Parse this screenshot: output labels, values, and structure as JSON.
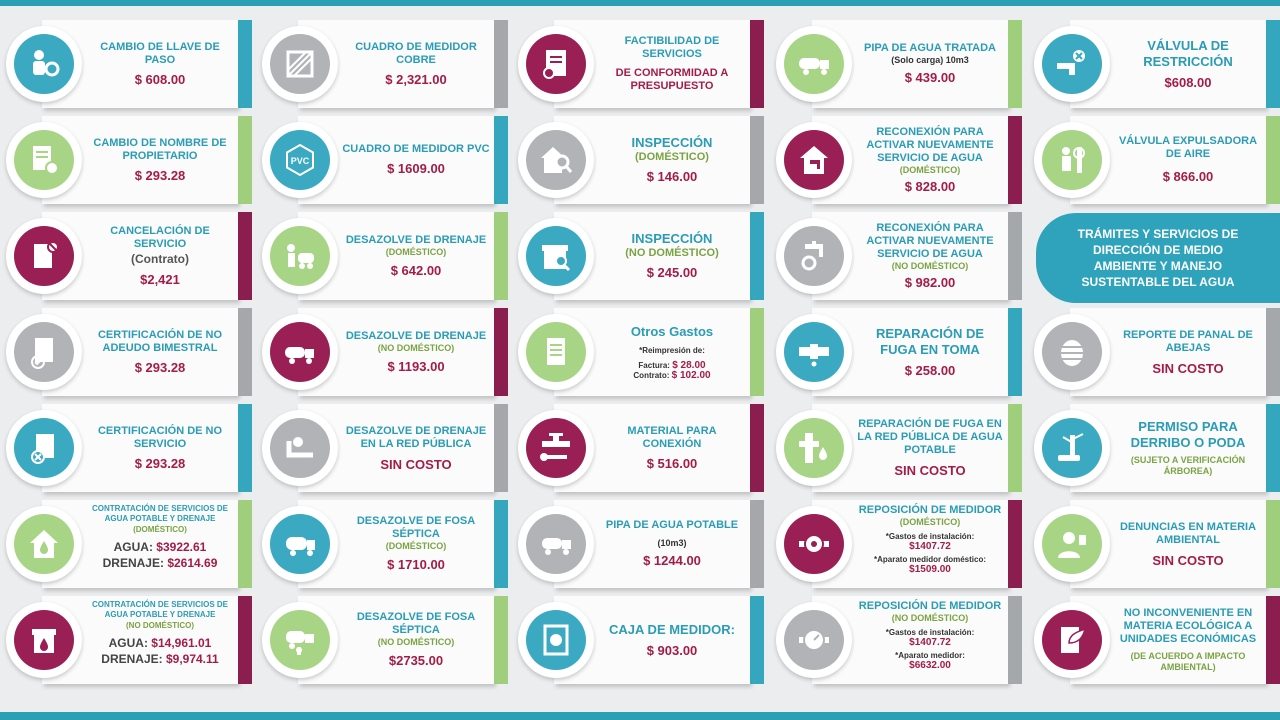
{
  "ribbon": "TRÁMITES Y SERVICIOS DE DIRECCIÓN DE MEDIO AMBIENTE Y MANEJO SUSTENTABLE DEL AGUA",
  "col1": [
    {
      "title": "CAMBIO DE LLAVE DE PASO",
      "price": "$ 608.00"
    },
    {
      "title": "CAMBIO DE NOMBRE DE PROPIETARIO",
      "price": "$ 293.28"
    },
    {
      "title": "CANCELACIÓN DE SERVICIO",
      "note": "(Contrato)",
      "price": "$2,421"
    },
    {
      "title": "CERTIFICACIÓN DE NO ADEUDO BIMESTRAL",
      "price": "$ 293.28"
    },
    {
      "title": "CERTIFICACIÓN DE NO SERVICIO",
      "price": "$ 293.28"
    },
    {
      "title": "CONTRATACIÓN DE SERVICIOS DE AGUA POTABLE Y DRENAJE",
      "sub": "(DOMÉSTICO)",
      "l1": "AGUA:",
      "v1": "$3922.61",
      "l2": "DRENAJE:",
      "v2": "$2614.69"
    },
    {
      "title": "CONTRATACIÓN DE SERVICIOS DE AGUA POTABLE Y DRENAJE",
      "sub": "(NO DOMÉSTICO)",
      "l1": "AGUA:",
      "v1": "$14,961.01",
      "l2": "DRENAJE:",
      "v2": "$9,974.11"
    }
  ],
  "col2": [
    {
      "title": "CUADRO DE MEDIDOR COBRE",
      "price": "$ 2,321.00"
    },
    {
      "title": "CUADRO DE MEDIDOR PVC",
      "price": "$ 1609.00",
      "icon_label": "PVC"
    },
    {
      "title": "DESAZOLVE DE DRENAJE",
      "sub": "(DOMÉSTICO)",
      "price": "$ 642.00"
    },
    {
      "title": "DESAZOLVE DE DRENAJE",
      "sub": "(NO DOMÉSTICO)",
      "price": "$ 1193.00"
    },
    {
      "title": "DESAZOLVE DE DRENAJE EN LA RED PÚBLICA",
      "price": "SIN COSTO"
    },
    {
      "title": "DESAZOLVE DE FOSA SÉPTICA",
      "sub": "(DOMÉSTICO)",
      "price": "$ 1710.00"
    },
    {
      "title": "DESAZOLVE DE FOSA SÉPTICA",
      "sub": "(NO DOMÉSTICO)",
      "price": "$2735.00"
    }
  ],
  "col3": [
    {
      "title": "FACTIBILIDAD DE SERVICIOS",
      "sub2": "DE CONFORMIDAD A PRESUPUESTO"
    },
    {
      "title": "INSPECCIÓN",
      "sub": "(DOMÉSTICO)",
      "price": "$ 146.00"
    },
    {
      "title": "INSPECCIÓN",
      "sub": "(NO DOMÉSTICO)",
      "price": "$ 245.00"
    },
    {
      "title": "Otros Gastos",
      "n0": "*Reimpresión de:",
      "l1": "Factura:",
      "v1": "$ 28.00",
      "l2": "Contrato:",
      "v2": "$ 102.00"
    },
    {
      "title": "MATERIAL PARA CONEXIÓN",
      "price": "$ 516.00"
    },
    {
      "title": "PIPA DE AGUA POTABLE",
      "note": "(10m3)",
      "price": "$ 1244.00"
    },
    {
      "title": "CAJA DE MEDIDOR:",
      "price": "$ 903.00"
    }
  ],
  "col4": [
    {
      "title": "PIPA DE AGUA TRATADA",
      "note": "(Solo carga) 10m3",
      "price": "$ 439.00"
    },
    {
      "title": "RECONEXIÓN PARA ACTIVAR NUEVAMENTE SERVICIO DE AGUA",
      "sub": "(DOMÉSTICO)",
      "price": "$ 828.00"
    },
    {
      "title": "RECONEXIÓN PARA ACTIVAR NUEVAMENTE SERVICIO DE AGUA",
      "sub": "(NO DOMÉSTICO)",
      "price": "$ 982.00"
    },
    {
      "title": "REPARACIÓN DE FUGA EN TOMA",
      "price": "$ 258.00"
    },
    {
      "title": "REPARACIÓN DE FUGA EN LA RED PÚBLICA DE AGUA POTABLE",
      "price": "SIN COSTO"
    },
    {
      "title": "REPOSICIÓN DE MEDIDOR",
      "sub": "(DOMÉSTICO)",
      "l1": "*Gastos de instalación:",
      "v1": "$1407.72",
      "l2": "*Aparato medidor doméstico:",
      "v2": "$1509.00"
    },
    {
      "title": "REPOSICIÓN DE MEDIDOR",
      "sub": "(NO DOMÉSTICO)",
      "l1": "*Gastos de instalación:",
      "v1": "$1407.72",
      "l2": "*Aparato medidor:",
      "v2": "$6632.00"
    }
  ],
  "col5": [
    {
      "title": "VÁLVULA DE RESTRICCIÓN",
      "price": "$608.00"
    },
    {
      "title": "VÁLVULA EXPULSADORA DE AIRE",
      "price": "$ 866.00"
    },
    {
      "title": "REPORTE DE PANAL DE ABEJAS",
      "price": "SIN COSTO"
    },
    {
      "title": "PERMISO PARA DERRIBO O PODA",
      "sub": "(SUJETO A VERIFICACIÓN ÁRBOREA)"
    },
    {
      "title": "DENUNCIAS EN MATERIA AMBIENTAL",
      "price": "SIN COSTO"
    },
    {
      "title": "NO INCONVENIENTE EN MATERIA ECOLÓGICA A UNIDADES ECONÓMICAS",
      "sub": "(DE ACUERDO A IMPACTO AMBIENTAL)"
    }
  ],
  "colors": {
    "teal": "#34a6bd",
    "green": "#9fce7d",
    "magenta": "#8c1d4f",
    "gray": "#a5a8ab",
    "price": "#a31c47"
  }
}
